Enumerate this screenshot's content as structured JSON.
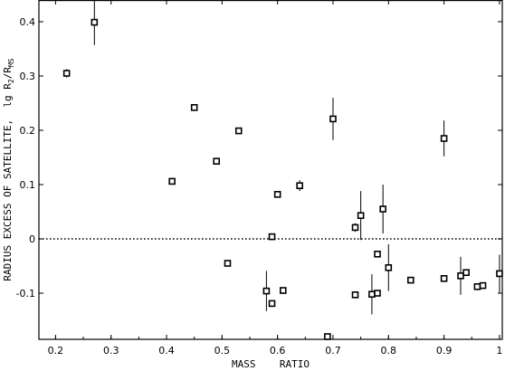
{
  "chart_data": {
    "type": "scatter",
    "title": "",
    "xlabel": "MASS    RATIO",
    "ylabel": {
      "prefix": "RADIUS EXCESS OF SATELLITE,  lg R",
      "sub1": "2",
      "mid": "/R",
      "sub2": "MS"
    },
    "xlim": [
      0.17,
      1.005
    ],
    "ylim": [
      -0.185,
      0.44
    ],
    "xticks": [
      0.2,
      0.3,
      0.4,
      0.5,
      0.6,
      0.7,
      0.8,
      0.9,
      1
    ],
    "xtick_labels": [
      "0.2",
      "0.3",
      "0.4",
      "0.5",
      "0.6",
      "0.7",
      "0.8",
      "0.9",
      "1"
    ],
    "yticks": [
      0.4,
      0.3,
      0.2,
      0.1,
      0,
      -0.1
    ],
    "ytick_labels": [
      "0.4",
      "0.3",
      "0.2",
      "0.1",
      "0",
      "-0.1"
    ],
    "reference_line": {
      "y": 0,
      "style": "dotted"
    },
    "marker": "open-square",
    "grid": false,
    "points": [
      {
        "x": 0.22,
        "y": 0.305,
        "err": 0.008
      },
      {
        "x": 0.27,
        "y": 0.399,
        "err": 0.042
      },
      {
        "x": 0.41,
        "y": 0.106,
        "err": 0.006
      },
      {
        "x": 0.45,
        "y": 0.242,
        "err": 0.006
      },
      {
        "x": 0.49,
        "y": 0.143,
        "err": 0.006
      },
      {
        "x": 0.51,
        "y": -0.045,
        "err": 0
      },
      {
        "x": 0.53,
        "y": 0.199,
        "err": 0.004
      },
      {
        "x": 0.58,
        "y": -0.096,
        "err": 0.037
      },
      {
        "x": 0.59,
        "y": 0.004,
        "err": 0.004
      },
      {
        "x": 0.59,
        "y": -0.119,
        "err": 0.006
      },
      {
        "x": 0.6,
        "y": 0.082,
        "err": 0.004
      },
      {
        "x": 0.61,
        "y": -0.095,
        "err": 0.006
      },
      {
        "x": 0.64,
        "y": 0.098,
        "err": 0.01
      },
      {
        "x": 0.69,
        "y": -0.18,
        "err": 0.006
      },
      {
        "x": 0.7,
        "y": 0.221,
        "err": 0.039
      },
      {
        "x": 0.74,
        "y": 0.021,
        "err": 0.008
      },
      {
        "x": 0.74,
        "y": -0.103,
        "err": 0.006
      },
      {
        "x": 0.75,
        "y": 0.043,
        "err": 0.045
      },
      {
        "x": 0.77,
        "y": -0.102,
        "err": 0.037
      },
      {
        "x": 0.78,
        "y": -0.028,
        "err": 0.004
      },
      {
        "x": 0.78,
        "y": -0.1,
        "err": 0.004
      },
      {
        "x": 0.79,
        "y": 0.055,
        "err": 0.045
      },
      {
        "x": 0.8,
        "y": -0.053,
        "err": 0.043
      },
      {
        "x": 0.84,
        "y": -0.076,
        "err": 0.006
      },
      {
        "x": 0.9,
        "y": 0.185,
        "err": 0.033
      },
      {
        "x": 0.9,
        "y": -0.073,
        "err": 0.006
      },
      {
        "x": 0.93,
        "y": -0.068,
        "err": 0.035
      },
      {
        "x": 0.94,
        "y": -0.062,
        "err": 0.004
      },
      {
        "x": 0.96,
        "y": -0.088,
        "err": 0.004
      },
      {
        "x": 0.97,
        "y": -0.086,
        "err": 0.004
      },
      {
        "x": 1,
        "y": -0.064,
        "err": 0.035
      }
    ]
  }
}
